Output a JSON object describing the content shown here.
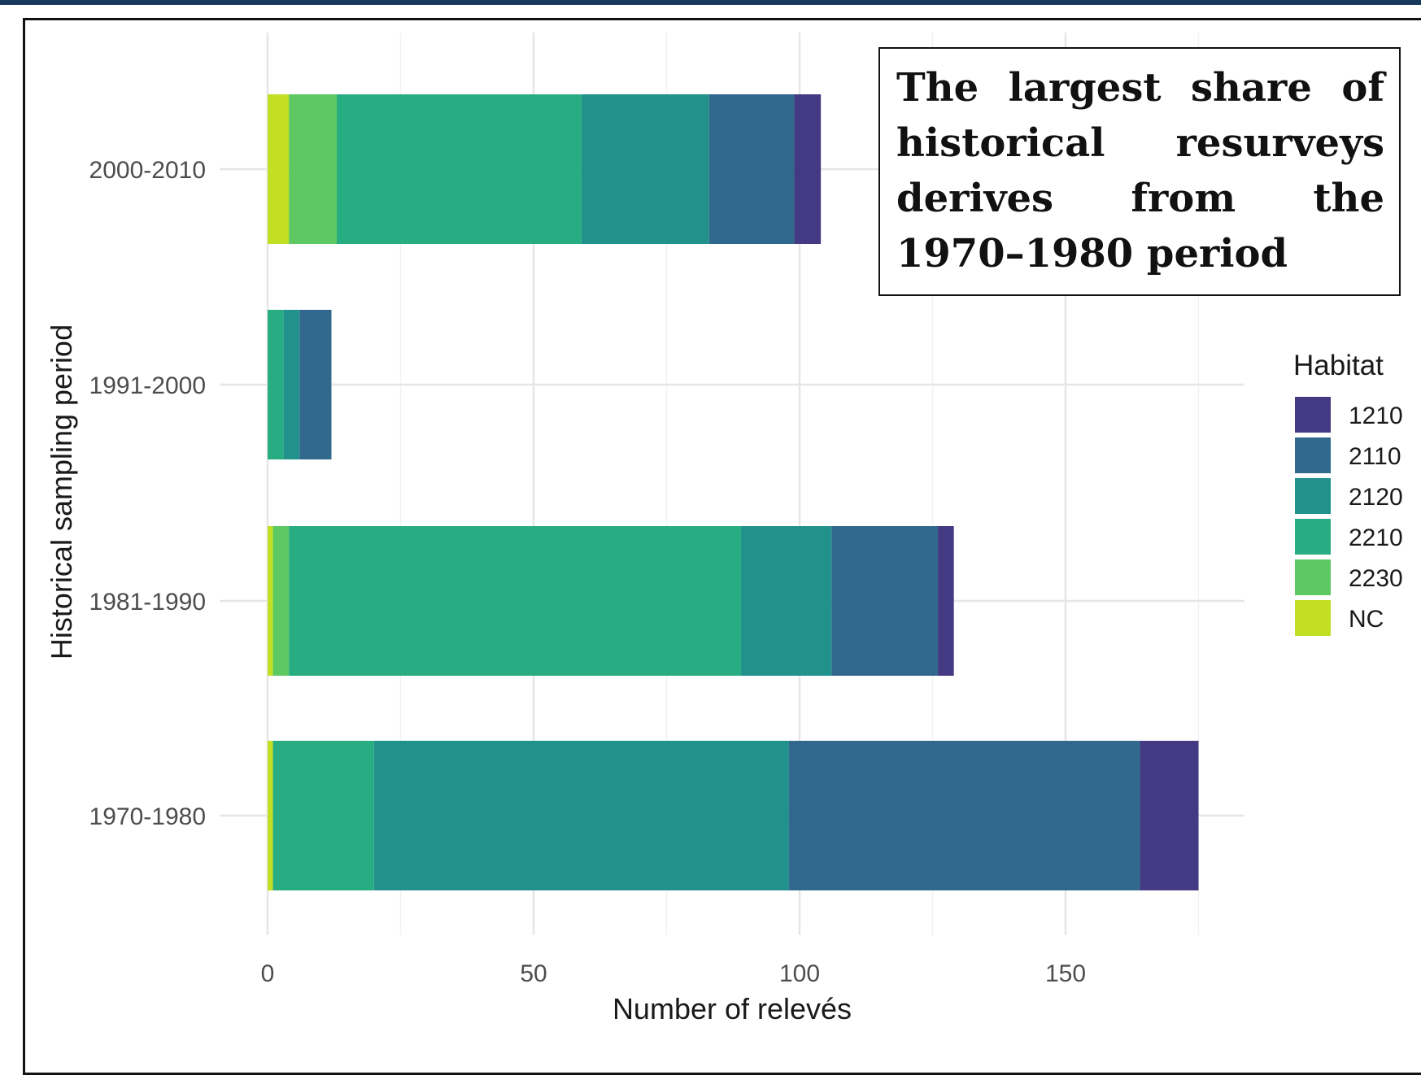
{
  "chart_data": {
    "type": "bar",
    "orientation": "horizontal",
    "stacked": true,
    "categories": [
      "1970-1980",
      "1981-1990",
      "1991-2000",
      "2000-2010"
    ],
    "series": [
      {
        "name": "NC",
        "color": "#c2df23",
        "values": [
          1,
          1,
          0,
          4
        ]
      },
      {
        "name": "2230",
        "color": "#5ec962",
        "values": [
          0,
          3,
          0,
          9
        ]
      },
      {
        "name": "2210",
        "color": "#27ad81",
        "values": [
          19,
          85,
          3,
          46
        ]
      },
      {
        "name": "2120",
        "color": "#21918c",
        "values": [
          78,
          17,
          3,
          24
        ]
      },
      {
        "name": "2110",
        "color": "#31688e",
        "values": [
          66,
          20,
          6,
          16
        ]
      },
      {
        "name": "1210",
        "color": "#443983",
        "values": [
          11,
          3,
          0,
          5
        ]
      }
    ],
    "legend_order": [
      "1210",
      "2110",
      "2120",
      "2210",
      "2230",
      "NC"
    ],
    "xlabel": "Number of relevés",
    "ylabel": "Historical sampling period",
    "x_ticks": [
      0,
      50,
      100,
      150
    ],
    "xlim": [
      0,
      184
    ],
    "legend_title": "Habitat",
    "legend_position": "right",
    "grid": true
  },
  "annotation": {
    "text": "The largest share of historical resurveys derives from the 1970–1980 period"
  }
}
